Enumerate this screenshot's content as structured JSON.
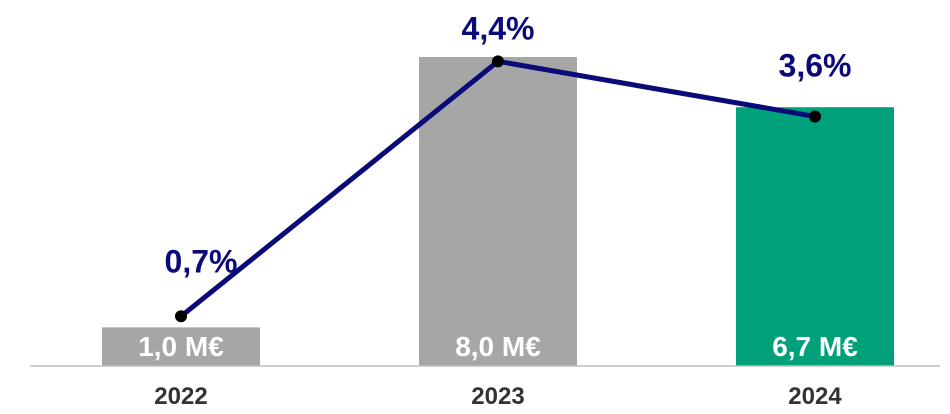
{
  "chart_data": {
    "type": "bar",
    "categories": [
      "2022",
      "2023",
      "2024"
    ],
    "series": [
      {
        "kind": "bar",
        "values": [
          1.0,
          8.0,
          6.7
        ],
        "labels": [
          "1,0 M€",
          "8,0  M€",
          "6,7 M€"
        ],
        "colors": [
          "#a6a6a6",
          "#a6a6a6",
          "#00a07a"
        ]
      },
      {
        "kind": "line",
        "values": [
          0.7,
          4.4,
          3.6
        ],
        "labels": [
          "0,7%",
          "4,4%",
          "3,6%"
        ],
        "color": "#0a0a78"
      }
    ],
    "title": "",
    "xlabel": "",
    "ylabel": "",
    "grid": false,
    "legend": "none"
  }
}
